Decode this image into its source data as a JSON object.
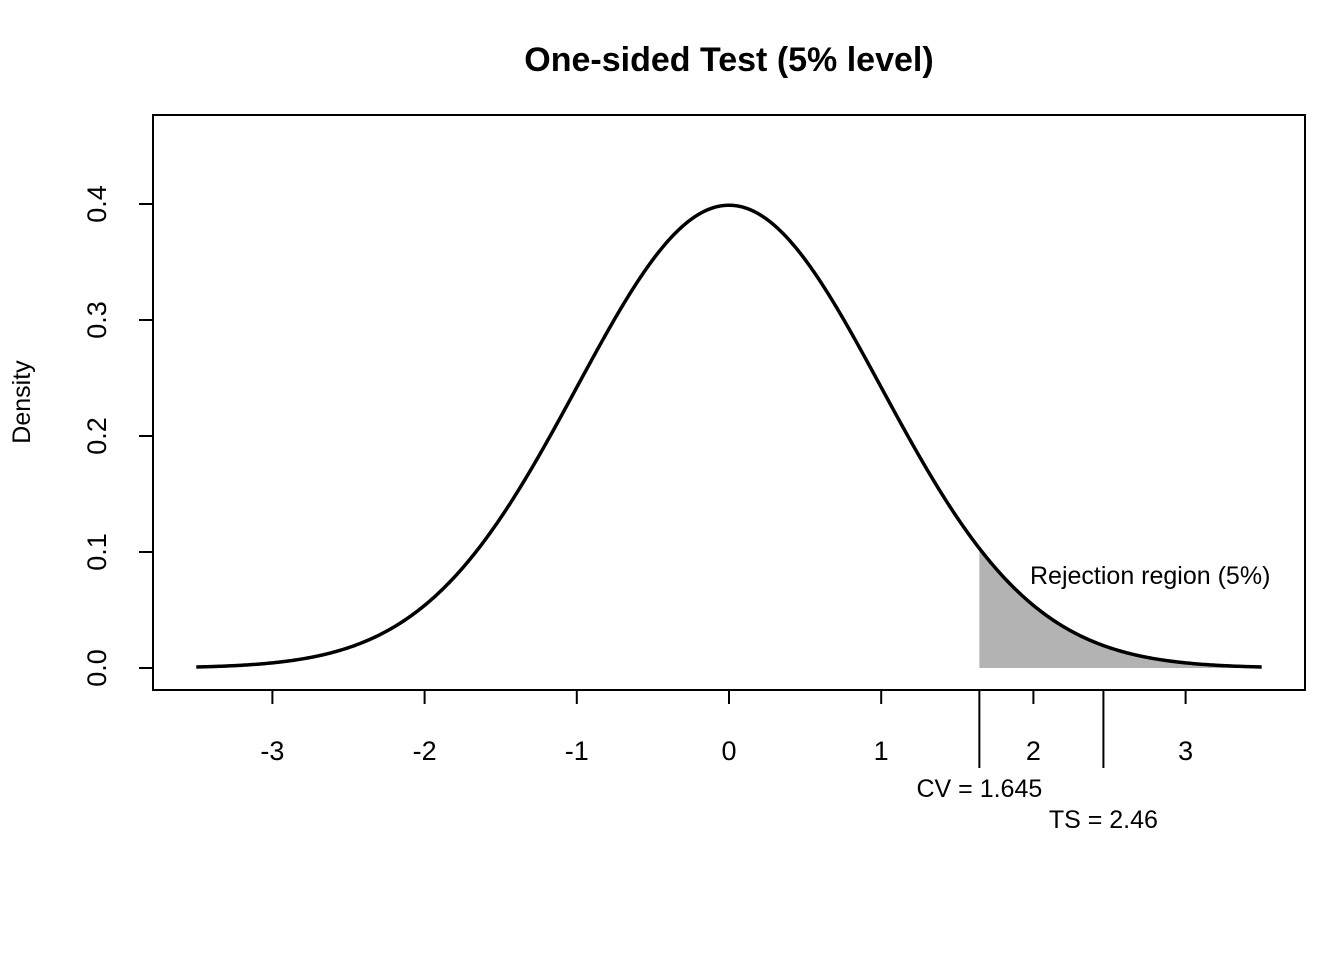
{
  "chart_data": {
    "type": "line",
    "title": "One-sided Test (5% level)",
    "xlabel": "",
    "ylabel": "Density",
    "distribution": "standard normal",
    "xlim": [
      -3.8,
      3.8
    ],
    "ylim": [
      0,
      0.47
    ],
    "x_ticks": [
      -3,
      -2,
      -1,
      0,
      1,
      2,
      3
    ],
    "x_tick_labels": [
      "-3",
      "-2",
      "-1",
      "0",
      "1",
      "2",
      "3"
    ],
    "y_ticks": [
      0.0,
      0.1,
      0.2,
      0.3,
      0.4
    ],
    "y_tick_labels": [
      "0.0",
      "0.1",
      "0.2",
      "0.3",
      "0.4"
    ],
    "curve": {
      "x": [
        -3.5,
        -3.0,
        -2.5,
        -2.0,
        -1.5,
        -1.0,
        -0.5,
        0.0,
        0.5,
        1.0,
        1.5,
        2.0,
        2.5,
        3.0,
        3.5
      ],
      "y": [
        0.0009,
        0.0044,
        0.0175,
        0.054,
        0.1295,
        0.242,
        0.3521,
        0.3989,
        0.3521,
        0.242,
        0.1295,
        0.054,
        0.0175,
        0.0044,
        0.0009
      ]
    },
    "rejection_region": {
      "from": 1.645,
      "to": 3.5,
      "fill": "#b3b3b3",
      "label": "Rejection region (5%)"
    },
    "markers": [
      {
        "x": 1.645,
        "label": "CV = 1.645"
      },
      {
        "x": 2.46,
        "label": "TS = 2.46"
      }
    ],
    "grid": false,
    "colors": {
      "curve": "#000000",
      "region": "#b3b3b3",
      "background": "#ffffff"
    }
  }
}
